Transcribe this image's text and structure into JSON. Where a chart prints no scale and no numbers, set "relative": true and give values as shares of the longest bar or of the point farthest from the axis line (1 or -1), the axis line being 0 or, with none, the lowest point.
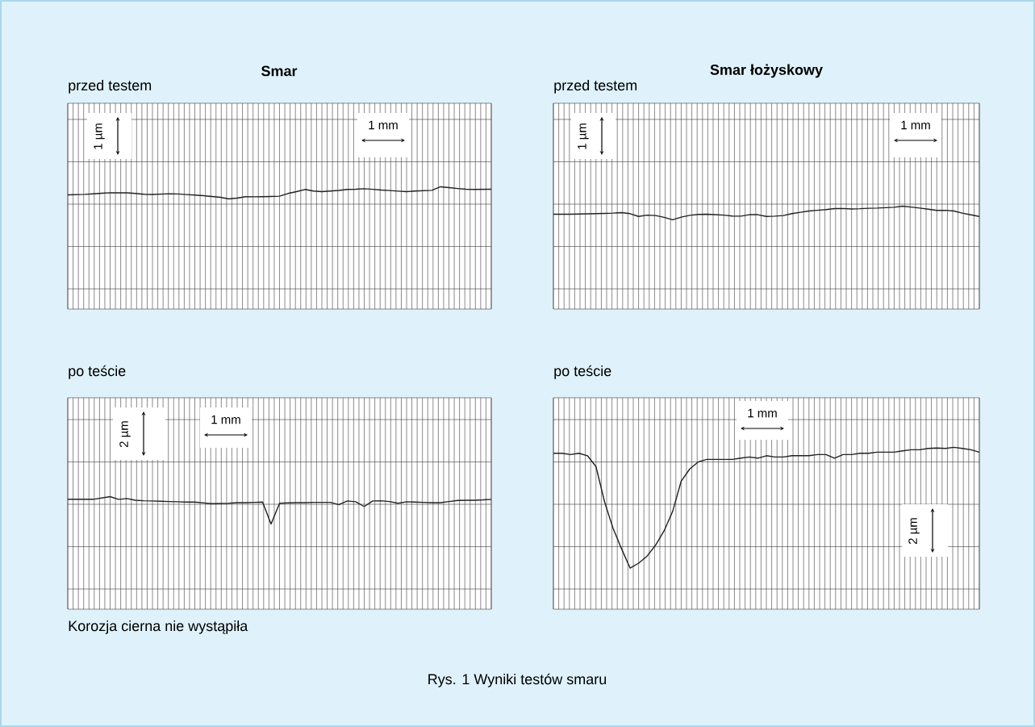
{
  "chart_data": [
    {
      "type": "line",
      "title": "Smar",
      "subtitle": "przed testem",
      "relative": true,
      "grid": true,
      "tick_labels": false,
      "marker": "none",
      "line_style": "solid",
      "annotations": [
        "1 µm",
        "1 mm"
      ],
      "categories": [
        null,
        null,
        null,
        null,
        null,
        null,
        null,
        null,
        null,
        null,
        null,
        null,
        null,
        null,
        null,
        null,
        null,
        null,
        null,
        null,
        null,
        null,
        null,
        null,
        null,
        null,
        null,
        null,
        null,
        null,
        null,
        null,
        null,
        null,
        null,
        null,
        null,
        null,
        null,
        null,
        null,
        null,
        null,
        null,
        null,
        null,
        null,
        null,
        null,
        null,
        null
      ],
      "color": "#231f20",
      "values": [
        0.934,
        0.936,
        0.938,
        0.942,
        0.947,
        0.951,
        0.95,
        0.95,
        0.945,
        0.939,
        0.937,
        0.94,
        0.943,
        0.941,
        0.936,
        0.932,
        0.927,
        0.921,
        0.914,
        0.901,
        0.907,
        0.919,
        0.918,
        0.919,
        0.921,
        0.923,
        0.945,
        0.96,
        0.978,
        0.965,
        0.96,
        0.965,
        0.97,
        0.978,
        0.98,
        0.984,
        0.979,
        0.973,
        0.969,
        0.964,
        0.96,
        0.965,
        0.968,
        0.971,
        1,
        0.993,
        0.986,
        0.98,
        0.978,
        0.979,
        0.98
      ]
    },
    {
      "type": "line",
      "title": "Smar łożyskowy",
      "subtitle": "przed testem",
      "relative": true,
      "grid": true,
      "tick_labels": false,
      "marker": "none",
      "line_style": "solid",
      "annotations": [
        "1 µm",
        "1 mm"
      ],
      "categories": [
        null,
        null,
        null,
        null,
        null,
        null,
        null,
        null,
        null,
        null,
        null,
        null,
        null,
        null,
        null,
        null,
        null,
        null,
        null,
        null,
        null,
        null,
        null,
        null,
        null,
        null,
        null,
        null,
        null,
        null,
        null,
        null,
        null,
        null,
        null,
        null,
        null,
        null,
        null,
        null,
        null,
        null,
        null,
        null,
        null,
        null,
        null,
        null,
        null,
        null,
        null
      ],
      "color": "#231f20",
      "values": [
        0.921,
        0.921,
        0.921,
        0.923,
        0.925,
        0.927,
        0.929,
        0.932,
        0.937,
        0.927,
        0.9,
        0.913,
        0.909,
        0.891,
        0.867,
        0.893,
        0.911,
        0.919,
        0.921,
        0.917,
        0.913,
        0.904,
        0.903,
        0.917,
        0.917,
        0.9,
        0.903,
        0.909,
        0.927,
        0.94,
        0.953,
        0.96,
        0.967,
        0.976,
        0.977,
        0.973,
        0.975,
        0.979,
        0.981,
        0.985,
        0.989,
        1,
        0.991,
        0.981,
        0.971,
        0.959,
        0.96,
        0.953,
        0.932,
        0.916,
        0.9
      ]
    },
    {
      "type": "line",
      "subtitle": "po teście",
      "relative": true,
      "grid": true,
      "tick_labels": false,
      "marker": "none",
      "line_style": "solid",
      "annotations": [
        "2 µm",
        "1 mm",
        "Korozja cierna nie wystąpiła"
      ],
      "categories": [
        null,
        null,
        null,
        null,
        null,
        null,
        null,
        null,
        null,
        null,
        null,
        null,
        null,
        null,
        null,
        null,
        null,
        null,
        null,
        null,
        null,
        null,
        null,
        null,
        null,
        null,
        null,
        null,
        null,
        null,
        null,
        null,
        null,
        null,
        null,
        null,
        null,
        null,
        null,
        null,
        null,
        null,
        null,
        null,
        null,
        null,
        null,
        null,
        null,
        null,
        null
      ],
      "color": "#231f20",
      "values": [
        0.976,
        0.976,
        0.976,
        0.976,
        0.988,
        1,
        0.976,
        0.983,
        0.968,
        0.963,
        0.961,
        0.959,
        0.956,
        0.954,
        0.951,
        0.951,
        0.944,
        0.937,
        0.939,
        0.941,
        0.946,
        0.946,
        0.949,
        0.951,
        0.756,
        0.941,
        0.944,
        0.946,
        0.946,
        0.949,
        0.949,
        0.949,
        0.929,
        0.961,
        0.954,
        0.912,
        0.961,
        0.963,
        0.956,
        0.941,
        0.954,
        0.951,
        0.949,
        0.946,
        0.946,
        0.956,
        0.966,
        0.968,
        0.968,
        0.971,
        0.976
      ]
    },
    {
      "type": "line",
      "subtitle": "po teście",
      "relative": true,
      "grid": true,
      "tick_labels": false,
      "marker": "none",
      "line_style": "solid",
      "annotations": [
        "1 mm",
        "2 µm",
        "Rys. 1  Wyniki testów smaru"
      ],
      "categories": [
        null,
        null,
        null,
        null,
        null,
        null,
        null,
        null,
        null,
        null,
        null,
        null,
        null,
        null,
        null,
        null,
        null,
        null,
        null,
        null,
        null,
        null,
        null,
        null,
        null,
        null,
        null,
        null,
        null,
        null,
        null,
        null,
        null,
        null,
        null,
        null,
        null,
        null,
        null,
        null,
        null,
        null,
        null,
        null,
        null,
        null,
        null,
        null,
        null,
        null,
        null
      ],
      "color": "#231f20",
      "values": [
        0.963,
        0.963,
        0.955,
        0.963,
        0.948,
        0.881,
        0.664,
        0.5,
        0.373,
        0.254,
        0.284,
        0.328,
        0.396,
        0.485,
        0.604,
        0.791,
        0.866,
        0.91,
        0.925,
        0.925,
        0.925,
        0.925,
        0.933,
        0.94,
        0.933,
        0.948,
        0.94,
        0.94,
        0.948,
        0.948,
        0.948,
        0.955,
        0.955,
        0.933,
        0.955,
        0.955,
        0.963,
        0.963,
        0.97,
        0.97,
        0.97,
        0.978,
        0.985,
        0.985,
        0.993,
        0.996,
        0.993,
        1,
        0.993,
        0.985,
        0.97
      ]
    }
  ]
}
